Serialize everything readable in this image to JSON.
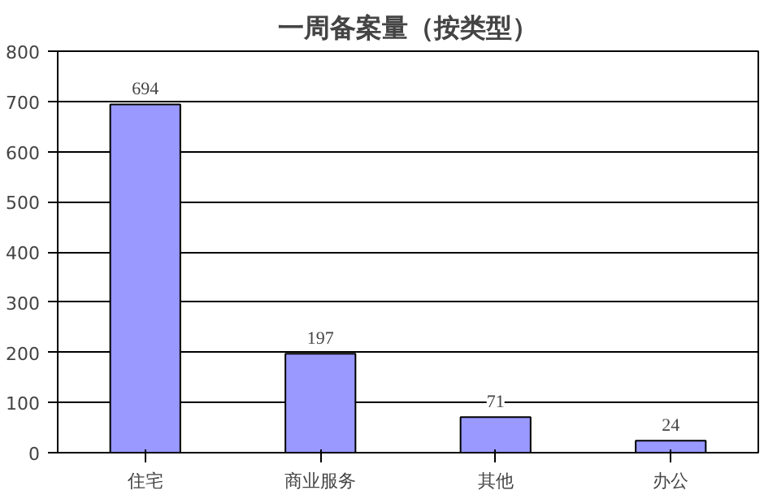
{
  "chart_data": {
    "type": "bar",
    "title": "一周备案量（按类型）",
    "categories": [
      "住宅",
      "商业服务",
      "其他",
      "办公"
    ],
    "values": [
      694,
      197,
      71,
      24
    ],
    "color": "#9999ff",
    "ylim": [
      0,
      800
    ],
    "yticks": [
      0,
      100,
      200,
      300,
      400,
      500,
      600,
      700,
      800
    ],
    "grid": "y",
    "data_labels": true
  }
}
